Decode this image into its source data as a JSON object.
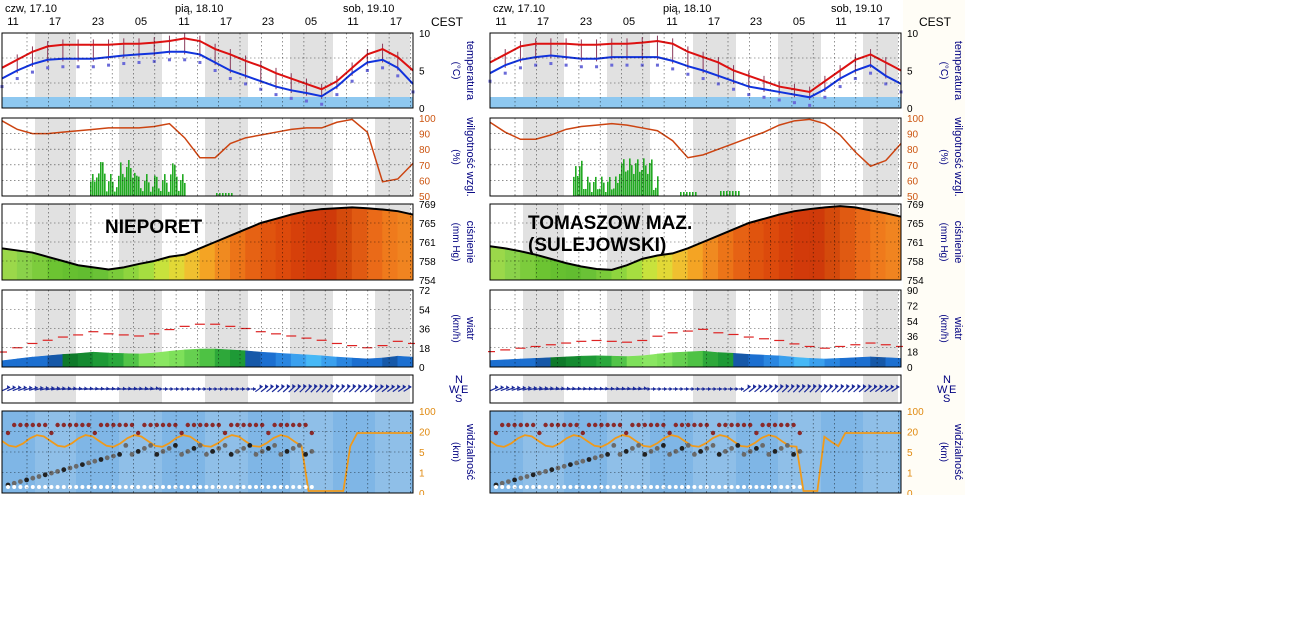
{
  "timezone_label": "CEST",
  "charts": [
    {
      "station": "NIEPORET",
      "station_lines": [
        "NIEPORET"
      ],
      "date_labels": [
        "czw, 17.10",
        "pią, 18.10",
        "sob, 19.10"
      ],
      "hour_labels": [
        "11",
        "17",
        "23",
        "05",
        "11",
        "17",
        "23",
        "05",
        "11",
        "17"
      ],
      "panels": {
        "temperature": {
          "unit": "(°C)",
          "name": "temperatura",
          "ticks": [
            "10",
            "5",
            "0"
          ]
        },
        "humidity": {
          "unit": "(%)",
          "name": "wilgotność wzgl.",
          "ticks": [
            "100",
            "90",
            "80",
            "70",
            "60",
            "50"
          ]
        },
        "pressure": {
          "unit": "(mm Hg)",
          "name": "ciśnienie",
          "ticks": [
            "769",
            "765",
            "761",
            "758",
            "754"
          ]
        },
        "wind": {
          "unit": "(km/h)",
          "name": "wiatr",
          "ticks": [
            "72",
            "54",
            "36",
            "18",
            "0"
          ]
        },
        "direction": {
          "compass_n": "N",
          "compass_s": "S",
          "compass_w": "W",
          "compass_e": "E"
        },
        "visibility": {
          "unit": "(km)",
          "name": "widzialność",
          "ticks_left": [
            "100",
            "20",
            "5",
            "1",
            "0"
          ],
          "ticks_right": [
            "100",
            "20",
            "5",
            "1",
            "0"
          ]
        }
      }
    },
    {
      "station": "TOMASZOW MAZ. (SULEJOWSKI)",
      "station_lines": [
        "TOMASZOW MAZ.",
        "(SULEJOWSKI)"
      ],
      "date_labels": [
        "czw, 17.10",
        "pią, 18.10",
        "sob, 19.10"
      ],
      "hour_labels": [
        "11",
        "17",
        "23",
        "05",
        "11",
        "17",
        "23",
        "05",
        "11",
        "17"
      ],
      "panels": {
        "temperature": {
          "unit": "(°C)",
          "name": "temperatura",
          "ticks": [
            "10",
            "5",
            "0"
          ]
        },
        "humidity": {
          "unit": "(%)",
          "name": "wilgotność wzgl.",
          "ticks": [
            "100",
            "90",
            "80",
            "70",
            "60",
            "50"
          ]
        },
        "pressure": {
          "unit": "(mm Hg)",
          "name": "ciśnienie",
          "ticks": [
            "769",
            "765",
            "761",
            "758",
            "754"
          ]
        },
        "wind": {
          "unit": "(km/h)",
          "name": "wiatr",
          "ticks": [
            "90",
            "72",
            "54",
            "36",
            "18",
            "0"
          ]
        },
        "direction": {
          "compass_n": "N",
          "compass_s": "S",
          "compass_w": "W",
          "compass_e": "E"
        },
        "visibility": {
          "unit": "(km)",
          "name": "widzialność",
          "ticks_left": [
            "100",
            "20",
            "5",
            "1",
            "0"
          ],
          "ticks_right": [
            "100",
            "20",
            "5",
            "1",
            "0"
          ]
        }
      }
    }
  ],
  "colors": {
    "temp_max": "#dd1111",
    "temp_mean": "#1133dd",
    "humidity_line": "#cc4411",
    "precip": "#22aa22",
    "pressure_outline": "#000000",
    "wind_gust": "#dd2222",
    "axis_text": "#000080",
    "grid": "#000000",
    "shade": "#dcdcdc"
  },
  "chart_data": [
    {
      "type": "line",
      "station": "NIEPORET",
      "x": [
        "11",
        "13",
        "15",
        "17",
        "19",
        "21",
        "23",
        "01",
        "03",
        "05",
        "07",
        "09",
        "11",
        "13",
        "15",
        "17",
        "19",
        "21",
        "23",
        "01",
        "03",
        "05",
        "07",
        "09",
        "11",
        "13",
        "15",
        "17"
      ],
      "series": [
        {
          "panel": "temperature",
          "values": [
            5.5,
            7,
            8.5,
            9.5,
            9.8,
            9.8,
            9.8,
            9.8,
            10,
            10,
            10.2,
            10.5,
            11,
            10.5,
            9,
            8,
            6.8,
            5.8,
            4.5,
            3.5,
            2.5,
            1.5,
            3,
            5.5,
            8,
            9,
            7.5,
            5
          ]
        },
        {
          "panel": "temperature",
          "values": [
            3.5,
            5,
            6.2,
            7,
            7.2,
            7.2,
            7.2,
            7.5,
            7.8,
            8,
            8.2,
            8.5,
            8.5,
            8,
            6.5,
            5,
            4,
            3,
            2,
            1.3,
            0.8,
            0.2,
            2,
            4.5,
            6.5,
            7,
            5.5,
            2.5
          ]
        },
        {
          "panel": "humidity",
          "values": [
            98,
            92,
            89,
            89,
            90,
            91,
            92,
            93,
            93,
            93,
            94,
            96,
            86,
            72,
            72,
            82,
            86,
            88,
            90,
            92,
            93,
            93,
            97,
            99,
            90,
            55,
            57,
            68
          ]
        },
        {
          "panel": "pressure",
          "values": [
            759.5,
            759,
            758.5,
            757.5,
            756.5,
            755.5,
            755,
            754.5,
            755,
            755.8,
            756.5,
            757.5,
            758,
            759.5,
            761,
            762.5,
            764,
            765.5,
            766.5,
            767.5,
            768.3,
            768.8,
            769,
            769.2,
            769,
            768.7,
            768.3,
            767.5
          ]
        },
        {
          "panel": "wind",
          "values": [
            14,
            18,
            22,
            25,
            28,
            30,
            33,
            31,
            30,
            29,
            31,
            35,
            38,
            40,
            40,
            38,
            36,
            33,
            31,
            29,
            27,
            25,
            22,
            20,
            18,
            20,
            24,
            22
          ]
        }
      ],
      "ylim_temperature": [
        -2,
        12
      ],
      "ylim_humidity": [
        45,
        100
      ],
      "ylim_pressure": [
        752,
        770
      ],
      "ylim_wind": [
        0,
        72
      ]
    },
    {
      "type": "line",
      "station": "TOMASZOW MAZ. (SULEJOWSKI)",
      "x": [
        "11",
        "13",
        "15",
        "17",
        "19",
        "21",
        "23",
        "01",
        "03",
        "05",
        "07",
        "09",
        "11",
        "13",
        "15",
        "17",
        "19",
        "21",
        "23",
        "01",
        "03",
        "05",
        "07",
        "09",
        "11",
        "13",
        "15",
        "17"
      ],
      "series": [
        {
          "panel": "temperature",
          "values": [
            6.5,
            8,
            9.5,
            10,
            10,
            10,
            9.8,
            9.8,
            10,
            10,
            10.2,
            10.5,
            10,
            8.5,
            7.5,
            6.5,
            5,
            4,
            3,
            2,
            1.5,
            1,
            3,
            5,
            7,
            8,
            6.5,
            5
          ]
        },
        {
          "panel": "temperature",
          "values": [
            4.5,
            6,
            7,
            7.5,
            7.8,
            7.5,
            7.2,
            7.2,
            7.5,
            7.5,
            7.5,
            7.5,
            6.8,
            5.8,
            5,
            4,
            3,
            2,
            1.5,
            1,
            0.5,
            0,
            1.5,
            3.5,
            5,
            6,
            4,
            2.5
          ]
        },
        {
          "panel": "humidity",
          "values": [
            97,
            90,
            85,
            85,
            88,
            92,
            94,
            95,
            96,
            95,
            93,
            91,
            84,
            72,
            74,
            78,
            82,
            86,
            90,
            95,
            98,
            99,
            96,
            88,
            76,
            66,
            70,
            82
          ]
        },
        {
          "panel": "pressure",
          "values": [
            760,
            759.5,
            758.8,
            758,
            757,
            756,
            755.2,
            754.6,
            754.4,
            755.5,
            757,
            757.8,
            758.3,
            759.5,
            761,
            762.5,
            764,
            765.5,
            766.5,
            767.5,
            768.3,
            768.8,
            769.2,
            769.5,
            769.2,
            768.5,
            767.8,
            767
          ]
        },
        {
          "panel": "wind",
          "values": [
            18,
            20,
            22,
            24,
            26,
            28,
            30,
            31,
            30,
            29,
            31,
            36,
            40,
            42,
            44,
            40,
            38,
            35,
            33,
            31,
            27,
            24,
            22,
            24,
            26,
            28,
            26,
            24
          ]
        }
      ],
      "ylim_temperature": [
        -2,
        12
      ],
      "ylim_humidity": [
        45,
        100
      ],
      "ylim_pressure": [
        752,
        770
      ],
      "ylim_wind": [
        0,
        90
      ]
    }
  ]
}
